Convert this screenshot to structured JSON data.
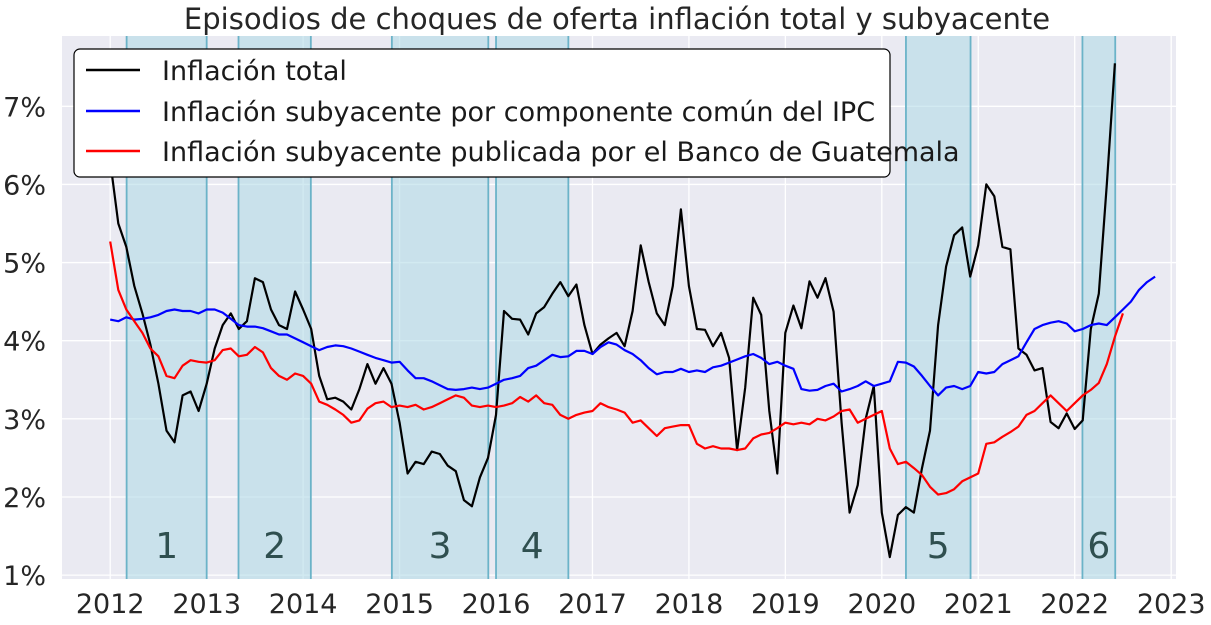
{
  "chart_data": {
    "type": "line",
    "title": "Episodios de choques de oferta inflación total y subyacente",
    "xlabel": "",
    "ylabel": "",
    "xlim": [
      2011.5,
      2023.05
    ],
    "ylim": [
      0.95,
      7.9
    ],
    "x_ticks": [
      2012,
      2013,
      2014,
      2015,
      2016,
      2017,
      2018,
      2019,
      2020,
      2021,
      2022,
      2023
    ],
    "x_tick_labels": [
      "2012",
      "2013",
      "2014",
      "2015",
      "2016",
      "2017",
      "2018",
      "2019",
      "2020",
      "2021",
      "2022",
      "2023"
    ],
    "y_ticks": [
      1,
      2,
      3,
      4,
      5,
      6,
      7
    ],
    "y_tick_labels": [
      "1%",
      "2%",
      "3%",
      "4%",
      "5%",
      "6%",
      "7%"
    ],
    "grid": true,
    "legend_position": "top-left",
    "background": "#eaeaf2",
    "shaded_episodes": [
      {
        "label": "1",
        "start": 2012.17,
        "end": 2013.0
      },
      {
        "label": "2",
        "start": 2013.33,
        "end": 2014.08
      },
      {
        "label": "3",
        "start": 2014.92,
        "end": 2015.92
      },
      {
        "label": "4",
        "start": 2016.0,
        "end": 2016.75
      },
      {
        "label": "5",
        "start": 2020.25,
        "end": 2020.92
      },
      {
        "label": "6",
        "start": 2022.08,
        "end": 2022.42
      }
    ],
    "series": [
      {
        "name": "Inflación total",
        "color": "#000000",
        "start": 2012.0,
        "step": 0.08333,
        "values": [
          6.3,
          5.5,
          5.2,
          4.7,
          4.35,
          3.95,
          3.45,
          2.85,
          2.7,
          3.3,
          3.35,
          3.1,
          3.45,
          3.9,
          4.2,
          4.35,
          4.15,
          4.25,
          4.8,
          4.75,
          4.4,
          4.2,
          4.15,
          4.63,
          4.4,
          4.15,
          3.55,
          3.25,
          3.27,
          3.22,
          3.12,
          3.38,
          3.7,
          3.45,
          3.65,
          3.45,
          2.95,
          2.3,
          2.45,
          2.42,
          2.58,
          2.55,
          2.4,
          2.33,
          1.96,
          1.88,
          2.25,
          2.5,
          3.05,
          4.38,
          4.28,
          4.27,
          4.08,
          4.35,
          4.43,
          4.6,
          4.75,
          4.57,
          4.72,
          4.2,
          3.83,
          3.95,
          4.03,
          4.1,
          3.93,
          4.38,
          5.22,
          4.75,
          4.35,
          4.2,
          4.7,
          5.68,
          4.7,
          4.15,
          4.14,
          3.93,
          4.1,
          3.78,
          2.6,
          3.4,
          4.55,
          4.33,
          3.1,
          2.3,
          4.1,
          4.45,
          4.16,
          4.76,
          4.55,
          4.8,
          4.37,
          2.95,
          1.8,
          2.15,
          3.0,
          3.42,
          1.8,
          1.23,
          1.77,
          1.87,
          1.8,
          2.37,
          2.85,
          4.2,
          4.95,
          5.35,
          5.45,
          4.82,
          5.22,
          6.0,
          5.85,
          5.2,
          5.17,
          3.9,
          3.82,
          3.62,
          3.65,
          2.96,
          2.88,
          3.07,
          2.87,
          2.98,
          4.15,
          4.6,
          6.0,
          7.55
        ]
      },
      {
        "name": "Inflación subyacente por componente común del IPC",
        "color": "#0000ff",
        "start": 2012.0,
        "step": 0.08333,
        "values": [
          4.27,
          4.25,
          4.3,
          4.27,
          4.28,
          4.3,
          4.33,
          4.38,
          4.4,
          4.38,
          4.38,
          4.35,
          4.4,
          4.4,
          4.36,
          4.28,
          4.2,
          4.18,
          4.18,
          4.16,
          4.12,
          4.08,
          4.08,
          4.03,
          3.98,
          3.93,
          3.88,
          3.92,
          3.94,
          3.93,
          3.9,
          3.86,
          3.82,
          3.78,
          3.75,
          3.72,
          3.73,
          3.62,
          3.52,
          3.52,
          3.48,
          3.43,
          3.38,
          3.37,
          3.38,
          3.4,
          3.38,
          3.4,
          3.45,
          3.5,
          3.52,
          3.55,
          3.65,
          3.68,
          3.75,
          3.82,
          3.79,
          3.8,
          3.87,
          3.87,
          3.83,
          3.92,
          3.98,
          3.95,
          3.88,
          3.83,
          3.75,
          3.65,
          3.57,
          3.6,
          3.6,
          3.64,
          3.6,
          3.62,
          3.6,
          3.66,
          3.68,
          3.72,
          3.76,
          3.8,
          3.83,
          3.78,
          3.7,
          3.73,
          3.68,
          3.64,
          3.38,
          3.36,
          3.37,
          3.42,
          3.45,
          3.35,
          3.38,
          3.42,
          3.48,
          3.42,
          3.45,
          3.48,
          3.73,
          3.72,
          3.67,
          3.55,
          3.42,
          3.3,
          3.4,
          3.42,
          3.38,
          3.42,
          3.6,
          3.58,
          3.6,
          3.7,
          3.75,
          3.8,
          3.98,
          4.15,
          4.2,
          4.23,
          4.25,
          4.22,
          4.12,
          4.15,
          4.2,
          4.22,
          4.2,
          4.3,
          4.4,
          4.5,
          4.65,
          4.75,
          4.82
        ]
      },
      {
        "name": "Inflación subyacente publicada por el Banco de Guatemala",
        "color": "#ff0000",
        "start": 2012.0,
        "step": 0.08333,
        "values": [
          5.27,
          4.65,
          4.4,
          4.25,
          4.1,
          3.9,
          3.8,
          3.55,
          3.52,
          3.68,
          3.75,
          3.73,
          3.72,
          3.75,
          3.88,
          3.9,
          3.8,
          3.82,
          3.92,
          3.85,
          3.65,
          3.55,
          3.5,
          3.58,
          3.55,
          3.45,
          3.22,
          3.18,
          3.12,
          3.05,
          2.95,
          2.98,
          3.13,
          3.2,
          3.22,
          3.15,
          3.17,
          3.15,
          3.18,
          3.12,
          3.15,
          3.2,
          3.25,
          3.3,
          3.27,
          3.17,
          3.15,
          3.17,
          3.15,
          3.17,
          3.2,
          3.28,
          3.22,
          3.3,
          3.2,
          3.18,
          3.05,
          3.0,
          3.05,
          3.08,
          3.1,
          3.2,
          3.15,
          3.12,
          3.08,
          2.95,
          2.98,
          2.88,
          2.78,
          2.88,
          2.9,
          2.92,
          2.92,
          2.68,
          2.62,
          2.65,
          2.62,
          2.62,
          2.6,
          2.62,
          2.75,
          2.8,
          2.82,
          2.88,
          2.95,
          2.93,
          2.95,
          2.93,
          3.0,
          2.98,
          3.03,
          3.1,
          3.12,
          2.95,
          3.0,
          3.05,
          3.1,
          2.62,
          2.42,
          2.45,
          2.37,
          2.28,
          2.13,
          2.03,
          2.05,
          2.1,
          2.2,
          2.25,
          2.3,
          2.68,
          2.7,
          2.77,
          2.83,
          2.9,
          3.05,
          3.1,
          3.2,
          3.3,
          3.2,
          3.1,
          3.2,
          3.3,
          3.37,
          3.46,
          3.7,
          4.05,
          4.35
        ]
      }
    ]
  }
}
